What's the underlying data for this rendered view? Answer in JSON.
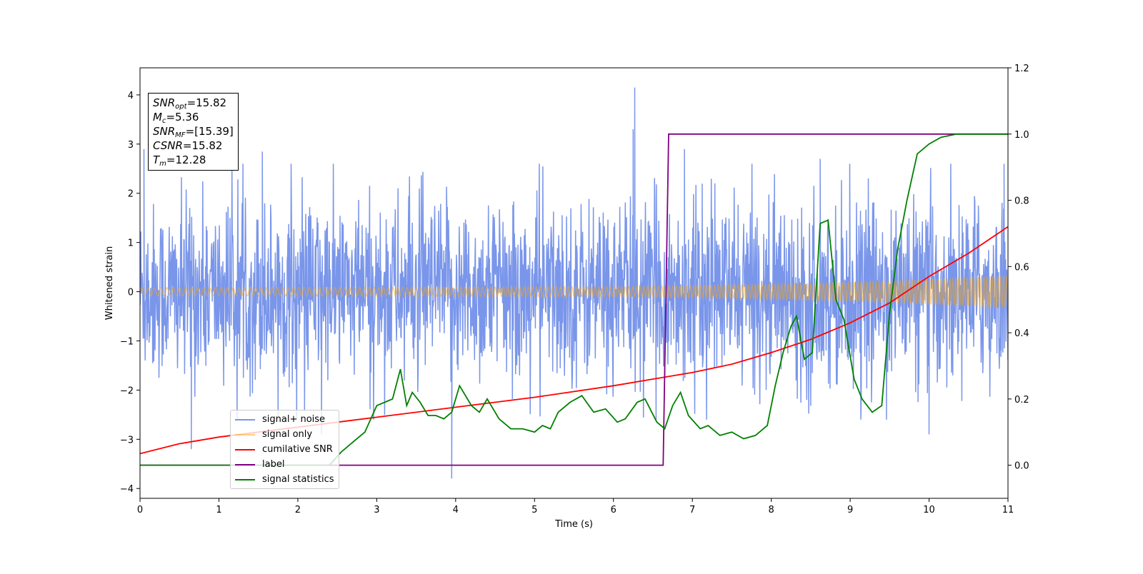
{
  "chart_data": {
    "type": "line",
    "xlabel": "Time (s)",
    "ylabel": "Whitened strain",
    "xlim": [
      0,
      11
    ],
    "ylim": [
      -4.2,
      4.55
    ],
    "y2lim": [
      -0.1,
      1.2
    ],
    "x_ticks": [
      "0",
      "1",
      "2",
      "3",
      "4",
      "5",
      "6",
      "7",
      "8",
      "9",
      "10",
      "11"
    ],
    "y_ticks": [
      "4",
      "3",
      "2",
      "1",
      "0",
      "−1",
      "−2",
      "−3",
      "−4"
    ],
    "y2_ticks": [
      "1.2",
      "1.0",
      "0.8",
      "0.6",
      "0.4",
      "0.2",
      "0.0"
    ],
    "grid": false,
    "legend_position": "lower-left",
    "annotation": [
      {
        "sym": "SNR",
        "sub": "opt",
        "rest": "=15.82"
      },
      {
        "sym": "M",
        "sub": "c",
        "rest": "=5.36"
      },
      {
        "sym": "SNR",
        "sub": "MF",
        "rest": "=[15.39]"
      },
      {
        "sym": "CSNR",
        "sub": "",
        "rest": "=15.82"
      },
      {
        "sym": "T",
        "sub": "m",
        "rest": "=12.28"
      }
    ],
    "series": [
      {
        "name": "signal+ noise",
        "axis": "left",
        "color": "#4169e1",
        "kind": "noise",
        "envelope": {
          "typical_abs": 1.6,
          "spikes": [
            [
              0.05,
              2.9
            ],
            [
              0.65,
              -3.2
            ],
            [
              1.55,
              2.85
            ],
            [
              2.3,
              -2.9
            ],
            [
              3.95,
              -3.8
            ],
            [
              6.27,
              4.15
            ],
            [
              6.25,
              3.3
            ],
            [
              6.9,
              2.9
            ],
            [
              8.62,
              2.7
            ],
            [
              10.0,
              -2.9
            ],
            [
              10.95,
              2.6
            ]
          ]
        }
      },
      {
        "name": "signal only",
        "axis": "left",
        "color": "#ffa500",
        "kind": "chirp",
        "amplitude": [
          [
            0,
            0.08
          ],
          [
            6,
            0.1
          ],
          [
            8,
            0.15
          ],
          [
            9.5,
            0.22
          ],
          [
            11,
            0.33
          ]
        ]
      },
      {
        "name": "cumilative SNR",
        "axis": "right",
        "color": "#ff0000",
        "x": [
          0,
          0.5,
          1,
          1.5,
          2,
          3,
          4,
          5,
          6,
          6.5,
          7,
          7.5,
          8,
          8.5,
          9,
          9.5,
          10,
          10.5,
          11
        ],
        "y": [
          0.035,
          0.065,
          0.085,
          0.1,
          0.115,
          0.145,
          0.175,
          0.205,
          0.24,
          0.26,
          0.28,
          0.305,
          0.34,
          0.38,
          0.43,
          0.49,
          0.57,
          0.64,
          0.72
        ]
      },
      {
        "name": "label",
        "axis": "right",
        "color": "#800080",
        "x": [
          0,
          6.63,
          6.7,
          11
        ],
        "y": [
          0,
          0,
          1.0,
          1.0
        ]
      },
      {
        "name": "signal statistics",
        "axis": "right",
        "color": "#008000",
        "x": [
          0,
          2.4,
          2.55,
          2.7,
          2.85,
          3.0,
          3.1,
          3.2,
          3.3,
          3.38,
          3.45,
          3.55,
          3.65,
          3.75,
          3.85,
          3.95,
          4.05,
          4.2,
          4.3,
          4.4,
          4.55,
          4.7,
          4.85,
          5.0,
          5.1,
          5.2,
          5.3,
          5.45,
          5.6,
          5.75,
          5.9,
          6.05,
          6.15,
          6.3,
          6.4,
          6.55,
          6.65,
          6.75,
          6.85,
          6.95,
          7.1,
          7.2,
          7.35,
          7.5,
          7.65,
          7.8,
          7.95,
          8.05,
          8.15,
          8.25,
          8.32,
          8.42,
          8.52,
          8.62,
          8.72,
          8.82,
          8.92,
          9.05,
          9.15,
          9.28,
          9.4,
          9.5,
          9.6,
          9.72,
          9.85,
          10.0,
          10.15,
          10.35,
          10.6,
          11.0
        ],
        "y": [
          0.0,
          0.0,
          0.04,
          0.07,
          0.1,
          0.18,
          0.19,
          0.2,
          0.29,
          0.18,
          0.22,
          0.19,
          0.15,
          0.15,
          0.14,
          0.16,
          0.24,
          0.18,
          0.16,
          0.2,
          0.14,
          0.11,
          0.11,
          0.1,
          0.12,
          0.11,
          0.16,
          0.19,
          0.21,
          0.16,
          0.17,
          0.13,
          0.14,
          0.19,
          0.2,
          0.13,
          0.11,
          0.18,
          0.22,
          0.15,
          0.11,
          0.12,
          0.09,
          0.1,
          0.08,
          0.09,
          0.12,
          0.24,
          0.34,
          0.42,
          0.45,
          0.32,
          0.34,
          0.73,
          0.74,
          0.5,
          0.44,
          0.26,
          0.2,
          0.16,
          0.18,
          0.46,
          0.65,
          0.8,
          0.94,
          0.97,
          0.99,
          1.0,
          1.0,
          1.0
        ]
      }
    ]
  }
}
